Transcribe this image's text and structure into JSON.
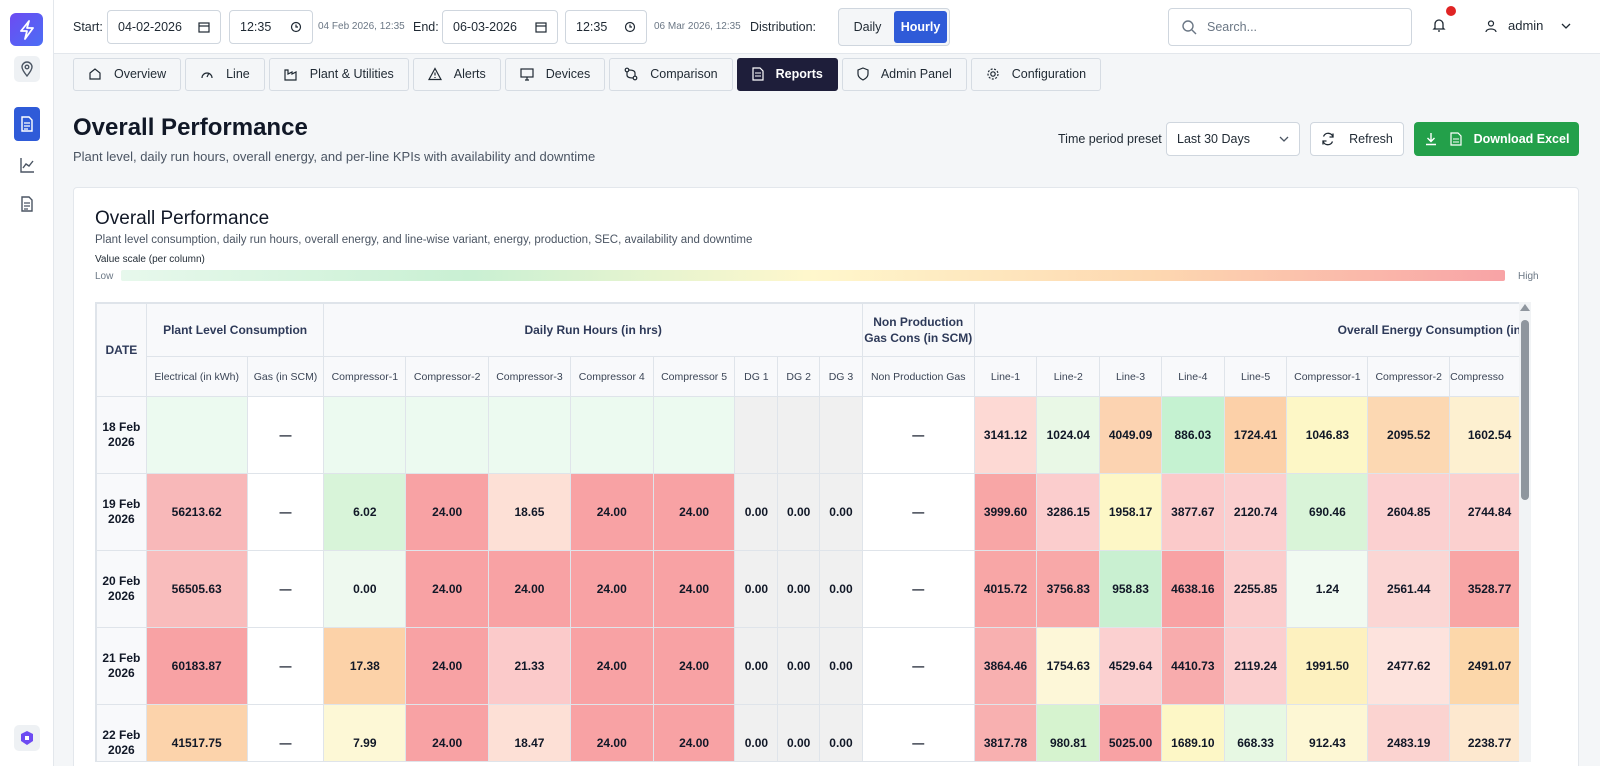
{
  "topbar": {
    "start_label": "Start:",
    "start_date": "04-02-2026",
    "start_time": "12:35",
    "start_hint": "04 Feb 2026, 12:35",
    "end_label": "End:",
    "end_date": "06-03-2026",
    "end_time": "12:35",
    "end_hint": "06 Mar 2026, 12:35",
    "distribution_label": "Distribution:",
    "distribution_options": [
      "Daily",
      "Hourly"
    ],
    "distribution_selected": "Hourly",
    "search_placeholder": "Search...",
    "user_name": "admin"
  },
  "tabs": [
    "Overview",
    "Line",
    "Plant & Utilities",
    "Alerts",
    "Devices",
    "Comparison",
    "Reports",
    "Admin Panel",
    "Configuration"
  ],
  "active_tab": "Reports",
  "header": {
    "title": "Overall Performance",
    "subtitle": "Plant level, daily run hours, overall energy, and per-line KPIs with availability and downtime",
    "preset_label": "Time period preset",
    "preset_value": "Last 30 Days",
    "refresh_label": "Refresh",
    "download_label": "Download Excel"
  },
  "card": {
    "title": "Overall Performance",
    "subtitle": "Plant level consumption, daily run hours, overall energy, and line-wise variant, energy, production, SEC, availability and downtime",
    "scale_label": "Value scale (per column)",
    "scale_low": "Low",
    "scale_high": "High"
  },
  "table": {
    "date_header": "DATE",
    "groups": {
      "plant": "Plant Level Consumption",
      "runhours": "Daily Run Hours (in hrs)",
      "nonprod": "Non Production Gas Cons (in SCM)",
      "energy": "Overall Energy Consumption (in"
    },
    "columns": {
      "electrical": "Electrical (in kWh)",
      "gas": "Gas (in SCM)",
      "comp1": "Compressor-1",
      "comp2": "Compressor-2",
      "comp3": "Compressor-3",
      "comp4": "Compressor 4",
      "comp5": "Compressor 5",
      "dg1": "DG 1",
      "dg2": "DG 2",
      "dg3": "DG 3",
      "nonprod_gas": "Non Production Gas",
      "line1": "Line-1",
      "line2": "Line-2",
      "line3": "Line-3",
      "line4": "Line-4",
      "line5": "Line-5",
      "e_comp1": "Compressor-1",
      "e_comp2": "Compressor-2",
      "e_comp3": "Compresso"
    },
    "rows": [
      {
        "date": "18 Feb 2026",
        "electrical": "",
        "gas": "—",
        "comp1": "",
        "comp2": "",
        "comp3": "",
        "comp4": "",
        "comp5": "",
        "dg1": "",
        "dg2": "",
        "dg3": "",
        "nonprod": "—",
        "line1": "3141.12",
        "line2": "1024.04",
        "line3": "4049.09",
        "line4": "886.03",
        "line5": "1724.41",
        "e_comp1": "1046.83",
        "e_comp2": "2095.52",
        "e_comp3": "1602.54"
      },
      {
        "date": "19 Feb 2026",
        "electrical": "56213.62",
        "gas": "—",
        "comp1": "6.02",
        "comp2": "24.00",
        "comp3": "18.65",
        "comp4": "24.00",
        "comp5": "24.00",
        "dg1": "0.00",
        "dg2": "0.00",
        "dg3": "0.00",
        "nonprod": "—",
        "line1": "3999.60",
        "line2": "3286.15",
        "line3": "1958.17",
        "line4": "3877.67",
        "line5": "2120.74",
        "e_comp1": "690.46",
        "e_comp2": "2604.85",
        "e_comp3": "2744.84"
      },
      {
        "date": "20 Feb 2026",
        "electrical": "56505.63",
        "gas": "—",
        "comp1": "0.00",
        "comp2": "24.00",
        "comp3": "24.00",
        "comp4": "24.00",
        "comp5": "24.00",
        "dg1": "0.00",
        "dg2": "0.00",
        "dg3": "0.00",
        "nonprod": "—",
        "line1": "4015.72",
        "line2": "3756.83",
        "line3": "958.83",
        "line4": "4638.16",
        "line5": "2255.85",
        "e_comp1": "1.24",
        "e_comp2": "2561.44",
        "e_comp3": "3528.77"
      },
      {
        "date": "21 Feb 2026",
        "electrical": "60183.87",
        "gas": "—",
        "comp1": "17.38",
        "comp2": "24.00",
        "comp3": "21.33",
        "comp4": "24.00",
        "comp5": "24.00",
        "dg1": "0.00",
        "dg2": "0.00",
        "dg3": "0.00",
        "nonprod": "—",
        "line1": "3864.46",
        "line2": "1754.63",
        "line3": "4529.64",
        "line4": "4410.73",
        "line5": "2119.24",
        "e_comp1": "1991.50",
        "e_comp2": "2477.62",
        "e_comp3": "2491.07"
      },
      {
        "date": "22 Feb 2026",
        "electrical": "41517.75",
        "gas": "—",
        "comp1": "7.99",
        "comp2": "24.00",
        "comp3": "18.47",
        "comp4": "24.00",
        "comp5": "24.00",
        "dg1": "0.00",
        "dg2": "0.00",
        "dg3": "0.00",
        "nonprod": "—",
        "line1": "3817.78",
        "line2": "980.81",
        "line3": "5025.00",
        "line4": "1689.10",
        "line5": "668.33",
        "e_comp1": "912.43",
        "e_comp2": "2483.19",
        "e_comp3": "2238.77"
      }
    ],
    "cell_colors": [
      {
        "electrical": "#ecfaf0",
        "gas": "#ffffff",
        "comp1": "#ecfaf0",
        "comp2": "#ecfaf0",
        "comp3": "#ecfaf0",
        "comp4": "#ecfaf0",
        "comp5": "#ecfaf0",
        "dg1": "#f0f0f0",
        "dg2": "#f0f0f0",
        "dg3": "#f0f0f0",
        "nonprod": "#ffffff",
        "line1": "#fdd9d4",
        "line2": "#e9f8e6",
        "line3": "#fcd3b1",
        "line4": "#c5f2d1",
        "line5": "#fcd0a8",
        "e_comp1": "#fdf7c6",
        "e_comp2": "#fcd8b2",
        "e_comp3": "#fdf0d0"
      },
      {
        "electrical": "#f8b8b9",
        "gas": "#ffffff",
        "comp1": "#d8f4d9",
        "comp2": "#f8a2a4",
        "comp3": "#fde0d6",
        "comp4": "#f8a2a4",
        "comp5": "#f8a2a4",
        "dg1": "#f0f0f0",
        "dg2": "#f0f0f0",
        "dg3": "#f0f0f0",
        "nonprod": "#ffffff",
        "line1": "#f8a6a6",
        "line2": "#fbcdcd",
        "line3": "#fdf7c6",
        "line4": "#fbcaca",
        "line5": "#fbcfcf",
        "e_comp1": "#d9f4d8",
        "e_comp2": "#fbd0d0",
        "e_comp3": "#fbd0cf"
      },
      {
        "electrical": "#f9bcbc",
        "gas": "#ffffff",
        "comp1": "#eef9ef",
        "comp2": "#f8a2a4",
        "comp3": "#f8a2a4",
        "comp4": "#f8a2a4",
        "comp5": "#f8a2a4",
        "dg1": "#f0f0f0",
        "dg2": "#f0f0f0",
        "dg3": "#f0f0f0",
        "nonprod": "#ffffff",
        "line1": "#f8a6a6",
        "line2": "#f8a8a8",
        "line3": "#c9f0d1",
        "line4": "#f8a2a4",
        "line5": "#fbcdcd",
        "e_comp1": "#f1faf1",
        "e_comp2": "#fbd6d4",
        "e_comp3": "#f8a5a5"
      },
      {
        "electrical": "#f8a2a4",
        "gas": "#ffffff",
        "comp1": "#fcd2a8",
        "comp2": "#f8a2a4",
        "comp3": "#fbcaca",
        "comp4": "#f8a2a4",
        "comp5": "#f8a2a4",
        "dg1": "#f0f0f0",
        "dg2": "#f0f0f0",
        "dg3": "#f0f0f0",
        "nonprod": "#ffffff",
        "line1": "#f8b0b0",
        "line2": "#fdf7d8",
        "line3": "#fbd0d0",
        "line4": "#f8acad",
        "line5": "#fbcfcf",
        "e_comp1": "#fdf1bf",
        "e_comp2": "#fde3dd",
        "e_comp3": "#fcd7aa"
      },
      {
        "electrical": "#fcd3ab",
        "gas": "#ffffff",
        "comp1": "#fdf8d6",
        "comp2": "#f8a2a4",
        "comp3": "#fde0d6",
        "comp4": "#f8a2a4",
        "comp5": "#f8a2a4",
        "dg1": "#f0f0f0",
        "dg2": "#f0f0f0",
        "dg3": "#f0f0f0",
        "nonprod": "#ffffff",
        "line1": "#f8b0b0",
        "line2": "#d6f3cf",
        "line3": "#f8a2a4",
        "line4": "#fdf7c6",
        "line5": "#e7f8e3",
        "e_comp1": "#fdf7d4",
        "e_comp2": "#fbd3d0",
        "e_comp3": "#fde8cf"
      }
    ],
    "colors": {
      "accent": "#2f5bd8",
      "active_tab_bg": "#1e1e3a",
      "excel_green": "#23a04a"
    }
  }
}
